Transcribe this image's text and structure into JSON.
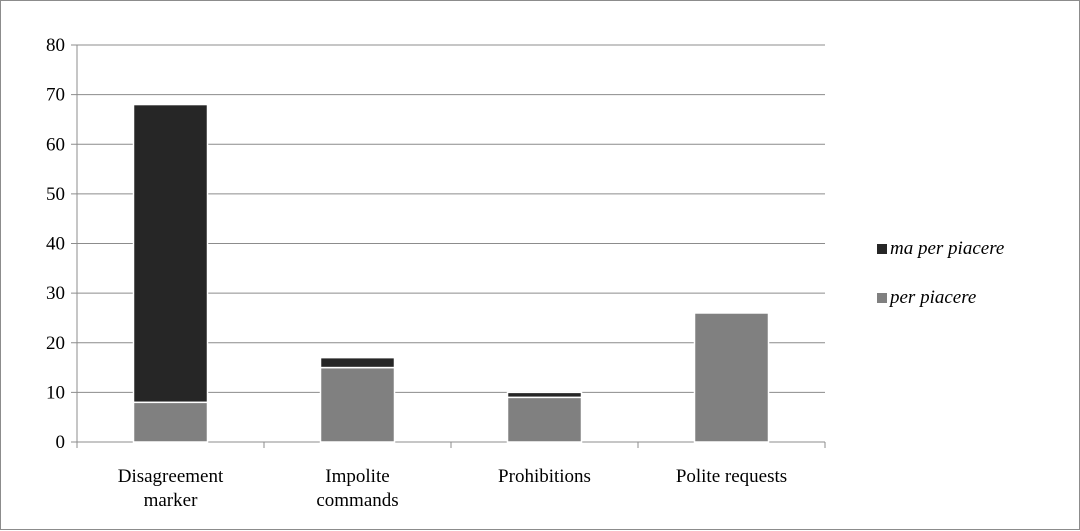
{
  "chart_data": {
    "type": "bar",
    "stacked": true,
    "categories": [
      [
        "Disagreement",
        "marker"
      ],
      [
        "Impolite",
        "commands"
      ],
      [
        "Prohibitions"
      ],
      [
        "Polite requests"
      ]
    ],
    "series": [
      {
        "name": "per piacere",
        "values": [
          8,
          15,
          9,
          26
        ],
        "color": "#808080"
      },
      {
        "name": "ma per piacere",
        "values": [
          60,
          2,
          1,
          0
        ],
        "color": "#262626"
      }
    ],
    "legend_order": [
      1,
      0
    ],
    "ylim": [
      0,
      80
    ],
    "yticks": [
      0,
      10,
      20,
      30,
      40,
      50,
      60,
      70,
      80
    ],
    "grid": true,
    "legend_position": "right",
    "title": "",
    "xlabel": "",
    "ylabel": ""
  }
}
